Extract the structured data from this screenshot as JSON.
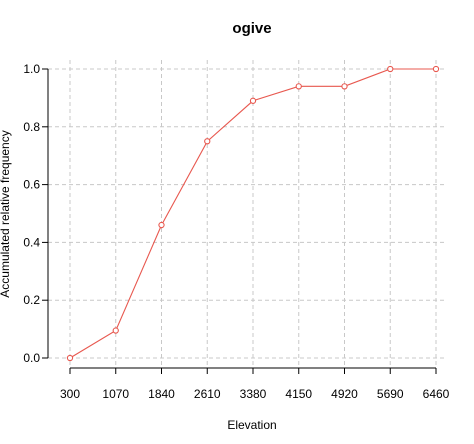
{
  "chart_data": {
    "type": "line",
    "title": "ogive",
    "xlabel": "Elevation",
    "ylabel": "Accumulated relative frequency",
    "x": [
      300,
      1070,
      1840,
      2610,
      3380,
      4150,
      4920,
      5690,
      6460
    ],
    "x_tick_labels": [
      "300",
      "1070",
      "1840",
      "2610",
      "3380",
      "4150",
      "4920",
      "5690",
      "6460"
    ],
    "y_ticks": [
      0.0,
      0.2,
      0.4,
      0.6,
      0.8,
      1.0
    ],
    "y_tick_labels": [
      "0.0",
      "0.2",
      "0.4",
      "0.6",
      "0.8",
      "1.0"
    ],
    "ylim": [
      0,
      1
    ],
    "xlim": [
      300,
      6460
    ],
    "grid": true,
    "series": [
      {
        "values": [
          0.0,
          0.095,
          0.46,
          0.75,
          0.89,
          0.94,
          0.94,
          1.0,
          1.0
        ],
        "color": "#e8584f",
        "marker": "open-circle"
      }
    ]
  }
}
